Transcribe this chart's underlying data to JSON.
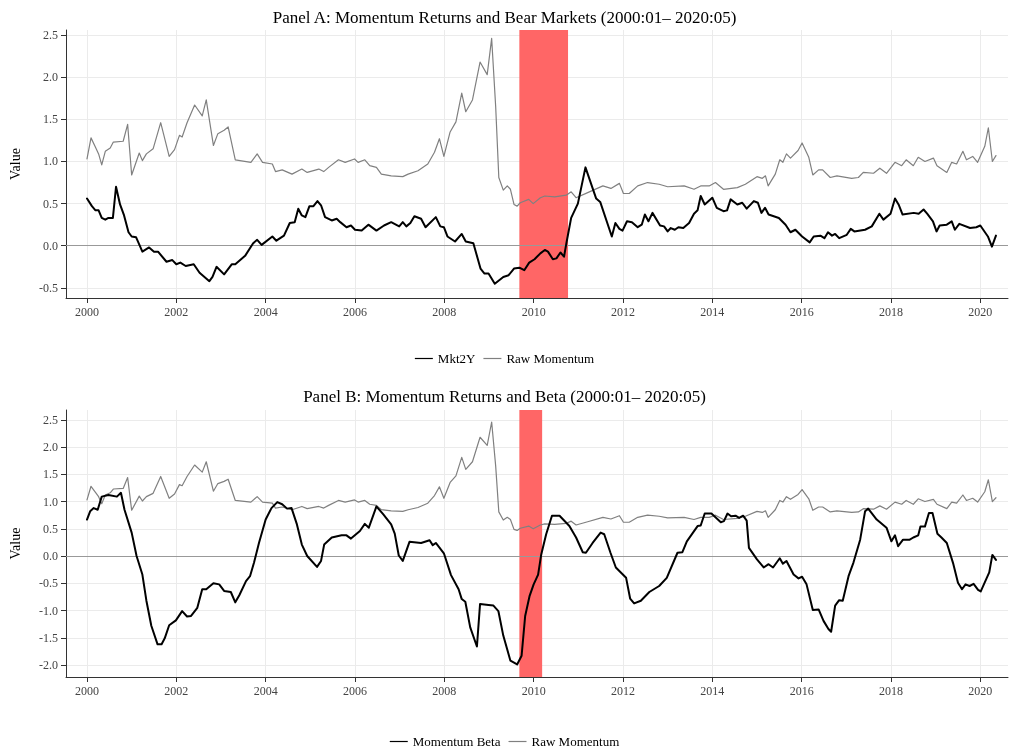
{
  "chart_data": [
    {
      "type": "line",
      "title": "Panel A: Momentum Returns and Bear Markets (2000:01– 2020:05)",
      "ylabel": "Value",
      "xlim": [
        1999.53,
        2020.62
      ],
      "xticks": [
        2000,
        2002,
        2004,
        2006,
        2008,
        2010,
        2012,
        2014,
        2016,
        2018,
        2020
      ],
      "ylim": [
        -0.62,
        2.56
      ],
      "yticks": [
        -0.5,
        {
          "value": 0,
          "label": "0.0"
        },
        0.5,
        {
          "value": 1,
          "label": "1.0"
        },
        1.5,
        {
          "value": 2,
          "label": "2.0"
        },
        2.5
      ],
      "grid": true,
      "legend": "bottom",
      "marker": "none",
      "line_style": "solid",
      "ref_lines": [
        {
          "axis": "y",
          "value": 0,
          "color": "#999999"
        }
      ],
      "bands": [
        {
          "axis": "x",
          "from": 2009.68,
          "to": 2010.77,
          "color": "#ff6666"
        }
      ],
      "series": [
        {
          "name": "Mkt2Y",
          "color": "#000000",
          "x": [
            2000.0,
            2000.11,
            2000.19,
            2000.26,
            2000.33,
            2000.41,
            2000.48,
            2000.58,
            2000.65,
            2000.74,
            2000.83,
            2000.93,
            2001.0,
            2001.1,
            2001.24,
            2001.39,
            2001.5,
            2001.59,
            2001.78,
            2001.91,
            2002.0,
            2002.09,
            2002.21,
            2002.39,
            2002.52,
            2002.74,
            2002.81,
            2002.9,
            2003.07,
            2003.24,
            2003.32,
            2003.54,
            2003.72,
            2003.81,
            2003.91,
            2004.15,
            2004.24,
            2004.41,
            2004.54,
            2004.65,
            2004.73,
            2004.81,
            2004.89,
            2004.98,
            2005.07,
            2005.16,
            2005.24,
            2005.33,
            2005.48,
            2005.59,
            2005.67,
            2005.81,
            2005.91,
            2006.0,
            2006.15,
            2006.3,
            2006.48,
            2006.65,
            2006.81,
            2006.99,
            2007.07,
            2007.15,
            2007.24,
            2007.33,
            2007.48,
            2007.58,
            2007.81,
            2007.91,
            2007.99,
            2008.07,
            2008.24,
            2008.39,
            2008.48,
            2008.65,
            2008.81,
            2008.9,
            2008.99,
            2009.13,
            2009.32,
            2009.44,
            2009.56,
            2009.68,
            2009.79,
            2009.9,
            2010.02,
            2010.15,
            2010.25,
            2010.32,
            2010.43,
            2010.51,
            2010.6,
            2010.68,
            2010.74,
            2010.84,
            2010.99,
            2011.16,
            2011.4,
            2011.49,
            2011.75,
            2011.83,
            2011.92,
            2011.99,
            2012.09,
            2012.2,
            2012.33,
            2012.42,
            2012.49,
            2012.57,
            2012.66,
            2012.83,
            2012.92,
            2013.0,
            2013.07,
            2013.16,
            2013.24,
            2013.35,
            2013.48,
            2013.59,
            2013.67,
            2013.74,
            2013.83,
            2014.0,
            2014.1,
            2014.25,
            2014.33,
            2014.41,
            2014.56,
            2014.67,
            2014.77,
            2014.93,
            2015.02,
            2015.1,
            2015.18,
            2015.26,
            2015.49,
            2015.64,
            2015.75,
            2015.86,
            2016.01,
            2016.18,
            2016.27,
            2016.42,
            2016.51,
            2016.59,
            2016.68,
            2016.75,
            2016.84,
            2017.01,
            2017.1,
            2017.18,
            2017.42,
            2017.57,
            2017.74,
            2017.83,
            2017.99,
            2018.09,
            2018.17,
            2018.26,
            2018.51,
            2018.62,
            2018.73,
            2018.81,
            2018.94,
            2019.02,
            2019.09,
            2019.25,
            2019.36,
            2019.43,
            2019.53,
            2019.77,
            2019.91,
            2020.0,
            2020.17,
            2020.26,
            2020.35
          ],
          "values": [
            0.56,
            0.47,
            0.42,
            0.42,
            0.33,
            0.31,
            0.33,
            0.33,
            0.7,
            0.49,
            0.36,
            0.16,
            0.11,
            0.1,
            -0.07,
            -0.02,
            -0.07,
            -0.07,
            -0.19,
            -0.17,
            -0.22,
            -0.2,
            -0.24,
            -0.22,
            -0.32,
            -0.42,
            -0.37,
            -0.25,
            -0.34,
            -0.22,
            -0.22,
            -0.12,
            0.03,
            0.07,
            0.01,
            0.11,
            0.06,
            0.12,
            0.27,
            0.28,
            0.44,
            0.36,
            0.34,
            0.47,
            0.47,
            0.53,
            0.48,
            0.34,
            0.3,
            0.32,
            0.28,
            0.22,
            0.24,
            0.19,
            0.18,
            0.25,
            0.18,
            0.24,
            0.28,
            0.23,
            0.28,
            0.23,
            0.27,
            0.35,
            0.32,
            0.22,
            0.34,
            0.23,
            0.22,
            0.11,
            0.05,
            0.14,
            0.05,
            0.03,
            -0.27,
            -0.33,
            -0.33,
            -0.45,
            -0.37,
            -0.35,
            -0.27,
            -0.26,
            -0.29,
            -0.2,
            -0.16,
            -0.09,
            -0.05,
            -0.07,
            -0.16,
            -0.15,
            -0.08,
            -0.13,
            0.05,
            0.33,
            0.5,
            0.93,
            0.56,
            0.52,
            0.11,
            0.27,
            0.2,
            0.18,
            0.29,
            0.28,
            0.22,
            0.25,
            0.37,
            0.29,
            0.39,
            0.24,
            0.23,
            0.17,
            0.21,
            0.19,
            0.22,
            0.21,
            0.27,
            0.38,
            0.42,
            0.59,
            0.49,
            0.57,
            0.45,
            0.41,
            0.42,
            0.55,
            0.49,
            0.51,
            0.44,
            0.53,
            0.51,
            0.39,
            0.45,
            0.37,
            0.33,
            0.25,
            0.16,
            0.19,
            0.11,
            0.04,
            0.11,
            0.12,
            0.09,
            0.16,
            0.12,
            0.14,
            0.09,
            0.13,
            0.2,
            0.17,
            0.19,
            0.23,
            0.38,
            0.31,
            0.38,
            0.56,
            0.49,
            0.37,
            0.39,
            0.38,
            0.43,
            0.38,
            0.29,
            0.17,
            0.24,
            0.25,
            0.29,
            0.19,
            0.26,
            0.21,
            0.22,
            0.24,
            0.11,
            -0.01,
            0.12
          ]
        },
        {
          "name": "Raw Momentum",
          "color": "#808080",
          "x": [
            2000.0,
            2000.09,
            2000.19,
            2000.26,
            2000.33,
            2000.41,
            2000.52,
            2000.59,
            2000.81,
            2000.91,
            2001.0,
            2001.17,
            2001.24,
            2001.33,
            2001.48,
            2001.65,
            2001.84,
            2001.96,
            2002.07,
            2002.13,
            2002.24,
            2002.41,
            2002.58,
            2002.67,
            2002.83,
            2002.93,
            2003.07,
            2003.16,
            2003.32,
            2003.67,
            2003.81,
            2003.93,
            2004.15,
            2004.22,
            2004.37,
            2004.59,
            2004.81,
            2004.93,
            2005.19,
            2005.3,
            2005.41,
            2005.63,
            2005.78,
            2005.99,
            2006.07,
            2006.22,
            2006.33,
            2006.48,
            2006.59,
            2006.81,
            2007.07,
            2007.19,
            2007.41,
            2007.63,
            2007.78,
            2007.89,
            2007.99,
            2008.13,
            2008.26,
            2008.39,
            2008.48,
            2008.63,
            2008.8,
            2008.96,
            2009.06,
            2009.15,
            2009.22,
            2009.32,
            2009.41,
            2009.48,
            2009.56,
            2009.63,
            2009.7,
            2009.89,
            2009.99,
            2010.15,
            2010.25,
            2010.47,
            2010.73,
            2010.84,
            2010.95,
            2011.21,
            2011.55,
            2011.73,
            2011.92,
            2012.01,
            2012.14,
            2012.33,
            2012.55,
            2012.81,
            2013.0,
            2013.37,
            2013.59,
            2013.74,
            2013.93,
            2014.07,
            2014.25,
            2014.56,
            2014.74,
            2015.0,
            2015.12,
            2015.19,
            2015.25,
            2015.41,
            2015.51,
            2015.58,
            2015.66,
            2015.75,
            2015.92,
            2016.01,
            2016.16,
            2016.25,
            2016.38,
            2016.47,
            2016.64,
            2016.79,
            2017.12,
            2017.27,
            2017.38,
            2017.61,
            2017.75,
            2017.9,
            2018.09,
            2018.24,
            2018.34,
            2018.5,
            2018.61,
            2018.76,
            2018.95,
            2019.03,
            2019.25,
            2019.36,
            2019.47,
            2019.61,
            2019.69,
            2019.83,
            2019.94,
            2020.1,
            2020.18,
            2020.27,
            2020.35
          ],
          "values": [
            1.03,
            1.28,
            1.17,
            1.09,
            0.96,
            1.12,
            1.16,
            1.23,
            1.24,
            1.44,
            0.84,
            1.1,
            1.01,
            1.09,
            1.15,
            1.46,
            1.06,
            1.14,
            1.31,
            1.29,
            1.46,
            1.67,
            1.54,
            1.73,
            1.19,
            1.33,
            1.37,
            1.41,
            1.02,
            0.99,
            1.09,
            0.99,
            0.97,
            0.88,
            0.9,
            0.85,
            0.91,
            0.87,
            0.91,
            0.88,
            0.93,
            1.02,
            0.99,
            1.03,
            0.99,
            1.02,
            0.95,
            0.93,
            0.85,
            0.83,
            0.82,
            0.85,
            0.89,
            0.97,
            1.11,
            1.27,
            1.06,
            1.35,
            1.47,
            1.81,
            1.59,
            1.73,
            2.18,
            2.03,
            2.46,
            1.65,
            0.81,
            0.66,
            0.71,
            0.67,
            0.49,
            0.47,
            0.51,
            0.55,
            0.5,
            0.57,
            0.59,
            0.58,
            0.6,
            0.64,
            0.57,
            0.63,
            0.71,
            0.68,
            0.74,
            0.62,
            0.62,
            0.71,
            0.75,
            0.73,
            0.7,
            0.71,
            0.67,
            0.71,
            0.71,
            0.75,
            0.67,
            0.69,
            0.73,
            0.82,
            0.8,
            0.83,
            0.71,
            0.85,
            1.02,
            0.99,
            1.09,
            1.04,
            1.13,
            1.22,
            1.05,
            0.84,
            0.9,
            0.9,
            0.81,
            0.83,
            0.8,
            0.81,
            0.87,
            0.86,
            0.92,
            0.86,
            0.99,
            0.95,
            1.02,
            0.95,
            1.05,
            1.0,
            1.04,
            0.95,
            0.87,
            0.99,
            0.97,
            1.12,
            1.02,
            1.06,
            0.99,
            1.18,
            1.4,
            1.0,
            1.07
          ]
        }
      ]
    },
    {
      "type": "line",
      "title": "Panel B: Momentum Returns and Beta (2000:01– 2020:05)",
      "ylabel": "Value",
      "xlim": [
        1999.53,
        2020.62
      ],
      "xticks": [
        2000,
        2002,
        2004,
        2006,
        2008,
        2010,
        2012,
        2014,
        2016,
        2018,
        2020
      ],
      "ylim": [
        -2.22,
        2.68
      ],
      "yticks": [
        {
          "value": -2,
          "label": "-2.0"
        },
        -1.5,
        {
          "value": -1,
          "label": "-1.0"
        },
        -0.5,
        {
          "value": 0,
          "label": "0.0"
        },
        0.5,
        {
          "value": 1,
          "label": "1.0"
        },
        1.5,
        {
          "value": 2,
          "label": "2.0"
        },
        2.5
      ],
      "grid": true,
      "legend": "bottom",
      "marker": "none",
      "line_style": "solid",
      "ref_lines": [
        {
          "axis": "y",
          "value": 0,
          "color": "#999999"
        }
      ],
      "bands": [
        {
          "axis": "x",
          "from": 2009.68,
          "to": 2010.19,
          "color": "#ff6666"
        }
      ],
      "series": [
        {
          "name": "Momentum Beta",
          "color": "#000000",
          "x": [
            2000.0,
            2000.07,
            2000.15,
            2000.24,
            2000.33,
            2000.48,
            2000.67,
            2000.76,
            2000.84,
            2001.0,
            2001.11,
            2001.24,
            2001.33,
            2001.44,
            2001.58,
            2001.67,
            2001.74,
            2001.84,
            2001.99,
            2002.13,
            2002.24,
            2002.33,
            2002.47,
            2002.58,
            2002.67,
            2002.83,
            2002.96,
            2003.07,
            2003.22,
            2003.32,
            2003.41,
            2003.56,
            2003.65,
            2003.74,
            2003.85,
            2004.0,
            2004.13,
            2004.26,
            2004.37,
            2004.48,
            2004.58,
            2004.7,
            2004.81,
            2004.93,
            2005.15,
            2005.24,
            2005.31,
            2005.48,
            2005.7,
            2005.81,
            2005.91,
            2006.11,
            2006.22,
            2006.31,
            2006.48,
            2006.63,
            2006.81,
            2006.89,
            2006.98,
            2007.07,
            2007.22,
            2007.48,
            2007.67,
            2007.74,
            2007.81,
            2007.99,
            2008.15,
            2008.32,
            2008.39,
            2008.47,
            2008.58,
            2008.73,
            2008.8,
            2008.99,
            2009.1,
            2009.21,
            2009.32,
            2009.48,
            2009.63,
            2009.73,
            2009.81,
            2009.91,
            2010.0,
            2010.1,
            2010.17,
            2010.28,
            2010.41,
            2010.58,
            2010.8,
            2010.95,
            2011.1,
            2011.17,
            2011.32,
            2011.5,
            2011.58,
            2011.72,
            2011.84,
            2012.07,
            2012.16,
            2012.25,
            2012.4,
            2012.59,
            2012.81,
            2012.98,
            2013.22,
            2013.33,
            2013.43,
            2013.67,
            2013.74,
            2013.83,
            2013.98,
            2014.19,
            2014.26,
            2014.34,
            2014.42,
            2014.52,
            2014.6,
            2014.69,
            2014.77,
            2014.82,
            2015.0,
            2015.15,
            2015.26,
            2015.36,
            2015.51,
            2015.58,
            2015.66,
            2015.82,
            2015.93,
            2016.01,
            2016.11,
            2016.25,
            2016.38,
            2016.49,
            2016.6,
            2016.66,
            2016.75,
            2016.84,
            2016.92,
            2017.05,
            2017.16,
            2017.31,
            2017.42,
            2017.49,
            2017.68,
            2017.9,
            2018.01,
            2018.09,
            2018.16,
            2018.27,
            2018.42,
            2018.5,
            2018.61,
            2018.66,
            2018.76,
            2018.85,
            2018.93,
            2019.04,
            2019.13,
            2019.25,
            2019.39,
            2019.5,
            2019.59,
            2019.67,
            2019.76,
            2019.85,
            2019.95,
            2020.01,
            2020.2,
            2020.27,
            2020.35
          ],
          "values": [
            0.67,
            0.82,
            0.88,
            0.85,
            1.09,
            1.12,
            1.09,
            1.16,
            0.85,
            0.43,
            0.0,
            -0.34,
            -0.82,
            -1.28,
            -1.62,
            -1.62,
            -1.51,
            -1.27,
            -1.18,
            -1.01,
            -1.11,
            -1.1,
            -0.95,
            -0.61,
            -0.61,
            -0.5,
            -0.52,
            -0.64,
            -0.66,
            -0.85,
            -0.72,
            -0.46,
            -0.37,
            -0.12,
            0.24,
            0.67,
            0.88,
            0.99,
            0.95,
            0.87,
            0.88,
            0.58,
            0.21,
            0.0,
            -0.2,
            -0.09,
            0.21,
            0.34,
            0.38,
            0.38,
            0.32,
            0.46,
            0.59,
            0.52,
            0.91,
            0.77,
            0.58,
            0.41,
            0.01,
            -0.09,
            0.26,
            0.24,
            0.29,
            0.2,
            0.24,
            0.05,
            -0.35,
            -0.61,
            -0.79,
            -0.84,
            -1.31,
            -1.66,
            -0.88,
            -0.9,
            -0.91,
            -1.01,
            -1.46,
            -1.92,
            -1.99,
            -1.83,
            -1.1,
            -0.73,
            -0.52,
            -0.34,
            0.03,
            0.4,
            0.74,
            0.74,
            0.55,
            0.34,
            0.07,
            0.06,
            0.24,
            0.43,
            0.4,
            0.06,
            -0.21,
            -0.4,
            -0.78,
            -0.87,
            -0.82,
            -0.66,
            -0.55,
            -0.4,
            0.06,
            0.07,
            0.27,
            0.55,
            0.56,
            0.78,
            0.78,
            0.62,
            0.64,
            0.78,
            0.73,
            0.74,
            0.7,
            0.74,
            0.65,
            0.15,
            -0.06,
            -0.21,
            -0.15,
            -0.21,
            -0.04,
            -0.14,
            -0.09,
            -0.34,
            -0.41,
            -0.38,
            -0.52,
            -0.99,
            -0.98,
            -1.19,
            -1.34,
            -1.39,
            -0.91,
            -0.81,
            -0.82,
            -0.37,
            -0.12,
            0.3,
            0.82,
            0.87,
            0.67,
            0.52,
            0.27,
            0.38,
            0.18,
            0.3,
            0.3,
            0.34,
            0.38,
            0.54,
            0.54,
            0.79,
            0.79,
            0.41,
            0.34,
            0.24,
            -0.13,
            -0.49,
            -0.61,
            -0.52,
            -0.55,
            -0.51,
            -0.62,
            -0.65,
            -0.3,
            0.02,
            -0.07
          ]
        },
        {
          "name": "Raw Momentum",
          "color": "#808080",
          "x": [
            2000.0,
            2000.09,
            2000.19,
            2000.26,
            2000.33,
            2000.41,
            2000.52,
            2000.59,
            2000.81,
            2000.91,
            2001.0,
            2001.17,
            2001.24,
            2001.33,
            2001.48,
            2001.65,
            2001.84,
            2001.96,
            2002.07,
            2002.13,
            2002.24,
            2002.41,
            2002.58,
            2002.67,
            2002.83,
            2002.93,
            2003.07,
            2003.16,
            2003.32,
            2003.67,
            2003.81,
            2003.93,
            2004.15,
            2004.22,
            2004.37,
            2004.59,
            2004.81,
            2004.93,
            2005.19,
            2005.3,
            2005.41,
            2005.63,
            2005.78,
            2005.99,
            2006.07,
            2006.22,
            2006.33,
            2006.48,
            2006.59,
            2006.81,
            2007.07,
            2007.19,
            2007.41,
            2007.63,
            2007.78,
            2007.89,
            2007.99,
            2008.13,
            2008.26,
            2008.39,
            2008.48,
            2008.63,
            2008.8,
            2008.96,
            2009.06,
            2009.15,
            2009.22,
            2009.32,
            2009.41,
            2009.48,
            2009.56,
            2009.63,
            2009.7,
            2009.89,
            2009.99,
            2010.15,
            2010.25,
            2010.47,
            2010.73,
            2010.84,
            2010.95,
            2011.21,
            2011.55,
            2011.73,
            2011.92,
            2012.01,
            2012.14,
            2012.33,
            2012.55,
            2012.81,
            2013.0,
            2013.37,
            2013.59,
            2013.74,
            2013.93,
            2014.07,
            2014.25,
            2014.56,
            2014.74,
            2015.0,
            2015.12,
            2015.19,
            2015.25,
            2015.41,
            2015.51,
            2015.58,
            2015.66,
            2015.75,
            2015.92,
            2016.01,
            2016.16,
            2016.25,
            2016.38,
            2016.47,
            2016.64,
            2016.79,
            2017.12,
            2017.27,
            2017.38,
            2017.61,
            2017.75,
            2017.9,
            2018.09,
            2018.24,
            2018.34,
            2018.5,
            2018.61,
            2018.76,
            2018.95,
            2019.03,
            2019.25,
            2019.36,
            2019.47,
            2019.61,
            2019.69,
            2019.83,
            2019.94,
            2020.1,
            2020.18,
            2020.27,
            2020.35
          ],
          "values": [
            1.03,
            1.28,
            1.17,
            1.09,
            0.96,
            1.12,
            1.16,
            1.23,
            1.24,
            1.44,
            0.84,
            1.1,
            1.01,
            1.09,
            1.15,
            1.46,
            1.06,
            1.14,
            1.31,
            1.29,
            1.46,
            1.67,
            1.54,
            1.73,
            1.19,
            1.33,
            1.37,
            1.41,
            1.02,
            0.99,
            1.09,
            0.99,
            0.97,
            0.88,
            0.9,
            0.85,
            0.91,
            0.87,
            0.91,
            0.88,
            0.93,
            1.02,
            0.99,
            1.03,
            0.99,
            1.02,
            0.95,
            0.93,
            0.85,
            0.83,
            0.82,
            0.85,
            0.89,
            0.97,
            1.11,
            1.27,
            1.06,
            1.35,
            1.47,
            1.81,
            1.59,
            1.73,
            2.18,
            2.03,
            2.46,
            1.65,
            0.81,
            0.66,
            0.71,
            0.67,
            0.49,
            0.47,
            0.51,
            0.55,
            0.5,
            0.57,
            0.59,
            0.58,
            0.6,
            0.64,
            0.57,
            0.63,
            0.71,
            0.68,
            0.74,
            0.62,
            0.62,
            0.71,
            0.75,
            0.73,
            0.7,
            0.71,
            0.67,
            0.71,
            0.71,
            0.75,
            0.67,
            0.69,
            0.73,
            0.82,
            0.8,
            0.83,
            0.71,
            0.85,
            1.02,
            0.99,
            1.09,
            1.04,
            1.13,
            1.22,
            1.05,
            0.84,
            0.9,
            0.9,
            0.81,
            0.83,
            0.8,
            0.81,
            0.87,
            0.86,
            0.92,
            0.86,
            0.99,
            0.95,
            1.02,
            0.95,
            1.05,
            1.0,
            1.04,
            0.95,
            0.87,
            0.99,
            0.97,
            1.12,
            1.02,
            1.06,
            0.99,
            1.18,
            1.4,
            1.0,
            1.07
          ]
        }
      ]
    }
  ]
}
